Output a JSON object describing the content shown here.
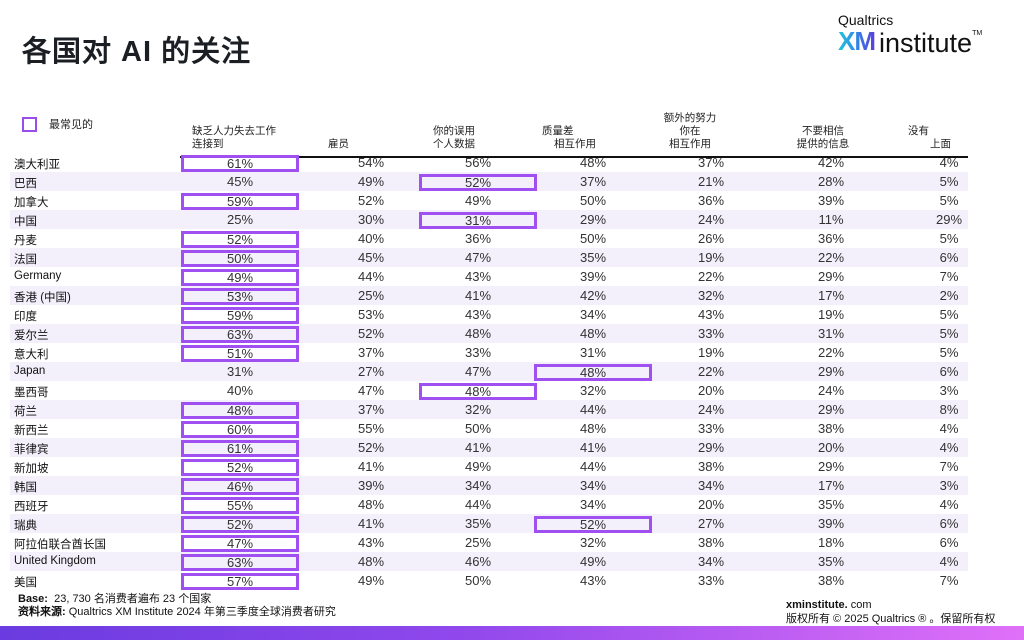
{
  "title": "各国对 AI 的关注",
  "logo": {
    "top": "Qualtrics",
    "xm": "XM",
    "institute": "institute",
    "tm": "TM"
  },
  "legend": {
    "label": "最常见的",
    "color": "#a04ff0"
  },
  "columns": [
    {
      "line1": "缺乏人力失去工作",
      "line2": "连接到",
      "line0": ""
    },
    {
      "line1": "",
      "line2": "雇员",
      "line0": ""
    },
    {
      "line1": "你的误用",
      "line2": "个人数据",
      "line0": ""
    },
    {
      "line1": "质量差",
      "line2": "相互作用",
      "line0": ""
    },
    {
      "line1": "你在",
      "line2": "相互作用",
      "line0": "额外的努力"
    },
    {
      "line1": "不要相信",
      "line2": "提供的信息",
      "line0": ""
    },
    {
      "line1": "没有",
      "line2": "上面",
      "line0": ""
    }
  ],
  "rows": [
    {
      "country": "澳大利亚",
      "values": [
        "61%",
        "54%",
        "56%",
        "48%",
        "37%",
        "42%",
        "4%"
      ],
      "highlight": [
        0
      ]
    },
    {
      "country": "巴西",
      "values": [
        "45%",
        "49%",
        "52%",
        "37%",
        "21%",
        "28%",
        "5%"
      ],
      "highlight": [
        2
      ]
    },
    {
      "country": "加拿大",
      "values": [
        "59%",
        "52%",
        "49%",
        "50%",
        "36%",
        "39%",
        "5%"
      ],
      "highlight": [
        0
      ]
    },
    {
      "country": "中国",
      "values": [
        "25%",
        "30%",
        "31%",
        "29%",
        "24%",
        "11%",
        "29%"
      ],
      "highlight": [
        2
      ]
    },
    {
      "country": "丹麦",
      "values": [
        "52%",
        "40%",
        "36%",
        "50%",
        "26%",
        "36%",
        "5%"
      ],
      "highlight": [
        0
      ]
    },
    {
      "country": "法国",
      "values": [
        "50%",
        "45%",
        "47%",
        "35%",
        "19%",
        "22%",
        "6%"
      ],
      "highlight": [
        0
      ]
    },
    {
      "country": "Germany",
      "values": [
        "49%",
        "44%",
        "43%",
        "39%",
        "22%",
        "29%",
        "7%"
      ],
      "highlight": [
        0
      ]
    },
    {
      "country": "香港 (中国)",
      "values": [
        "53%",
        "25%",
        "41%",
        "42%",
        "32%",
        "17%",
        "2%"
      ],
      "highlight": [
        0
      ]
    },
    {
      "country": "印度",
      "values": [
        "59%",
        "53%",
        "43%",
        "34%",
        "43%",
        "19%",
        "5%"
      ],
      "highlight": [
        0
      ]
    },
    {
      "country": "爱尔兰",
      "values": [
        "63%",
        "52%",
        "48%",
        "48%",
        "33%",
        "31%",
        "5%"
      ],
      "highlight": [
        0
      ]
    },
    {
      "country": "意大利",
      "values": [
        "51%",
        "37%",
        "33%",
        "31%",
        "19%",
        "22%",
        "5%"
      ],
      "highlight": [
        0
      ]
    },
    {
      "country": "Japan",
      "values": [
        "31%",
        "27%",
        "47%",
        "48%",
        "22%",
        "29%",
        "6%"
      ],
      "highlight": [
        3
      ]
    },
    {
      "country": "墨西哥",
      "values": [
        "40%",
        "47%",
        "48%",
        "32%",
        "20%",
        "24%",
        "3%"
      ],
      "highlight": [
        2
      ]
    },
    {
      "country": "荷兰",
      "values": [
        "48%",
        "37%",
        "32%",
        "44%",
        "24%",
        "29%",
        "8%"
      ],
      "highlight": [
        0
      ]
    },
    {
      "country": "新西兰",
      "values": [
        "60%",
        "55%",
        "50%",
        "48%",
        "33%",
        "38%",
        "4%"
      ],
      "highlight": [
        0
      ]
    },
    {
      "country": "菲律宾",
      "values": [
        "61%",
        "52%",
        "41%",
        "41%",
        "29%",
        "20%",
        "4%"
      ],
      "highlight": [
        0
      ]
    },
    {
      "country": "新加坡",
      "values": [
        "52%",
        "41%",
        "49%",
        "44%",
        "38%",
        "29%",
        "7%"
      ],
      "highlight": [
        0
      ]
    },
    {
      "country": "韩国",
      "values": [
        "46%",
        "39%",
        "34%",
        "34%",
        "34%",
        "17%",
        "3%"
      ],
      "highlight": [
        0
      ]
    },
    {
      "country": "西班牙",
      "values": [
        "55%",
        "48%",
        "44%",
        "34%",
        "20%",
        "35%",
        "4%"
      ],
      "highlight": [
        0
      ]
    },
    {
      "country": "瑞典",
      "values": [
        "52%",
        "41%",
        "35%",
        "52%",
        "27%",
        "39%",
        "6%"
      ],
      "highlight": [
        0,
        3
      ]
    },
    {
      "country": "阿拉伯联合酋长国",
      "values": [
        "47%",
        "43%",
        "25%",
        "32%",
        "38%",
        "18%",
        "6%"
      ],
      "highlight": [
        0
      ]
    },
    {
      "country": "United Kingdom",
      "values": [
        "63%",
        "48%",
        "46%",
        "49%",
        "34%",
        "35%",
        "4%"
      ],
      "highlight": [
        0
      ]
    },
    {
      "country": "美国",
      "values": [
        "57%",
        "49%",
        "50%",
        "43%",
        "33%",
        "38%",
        "7%"
      ],
      "highlight": [
        0
      ]
    }
  ],
  "footer": {
    "base_label": "Base:",
    "base_text": "23, 730 名消费者遍布 23 个国家",
    "source_label": "资料来源:",
    "source_text": "Qualtrics XM Institute 2024 年第三季度全球消费者研究",
    "site_bold": "xminstitute.",
    "site_rest": " com",
    "copyright": "版权所有 © 2025 Qualtrics ® 。保留所有权"
  }
}
